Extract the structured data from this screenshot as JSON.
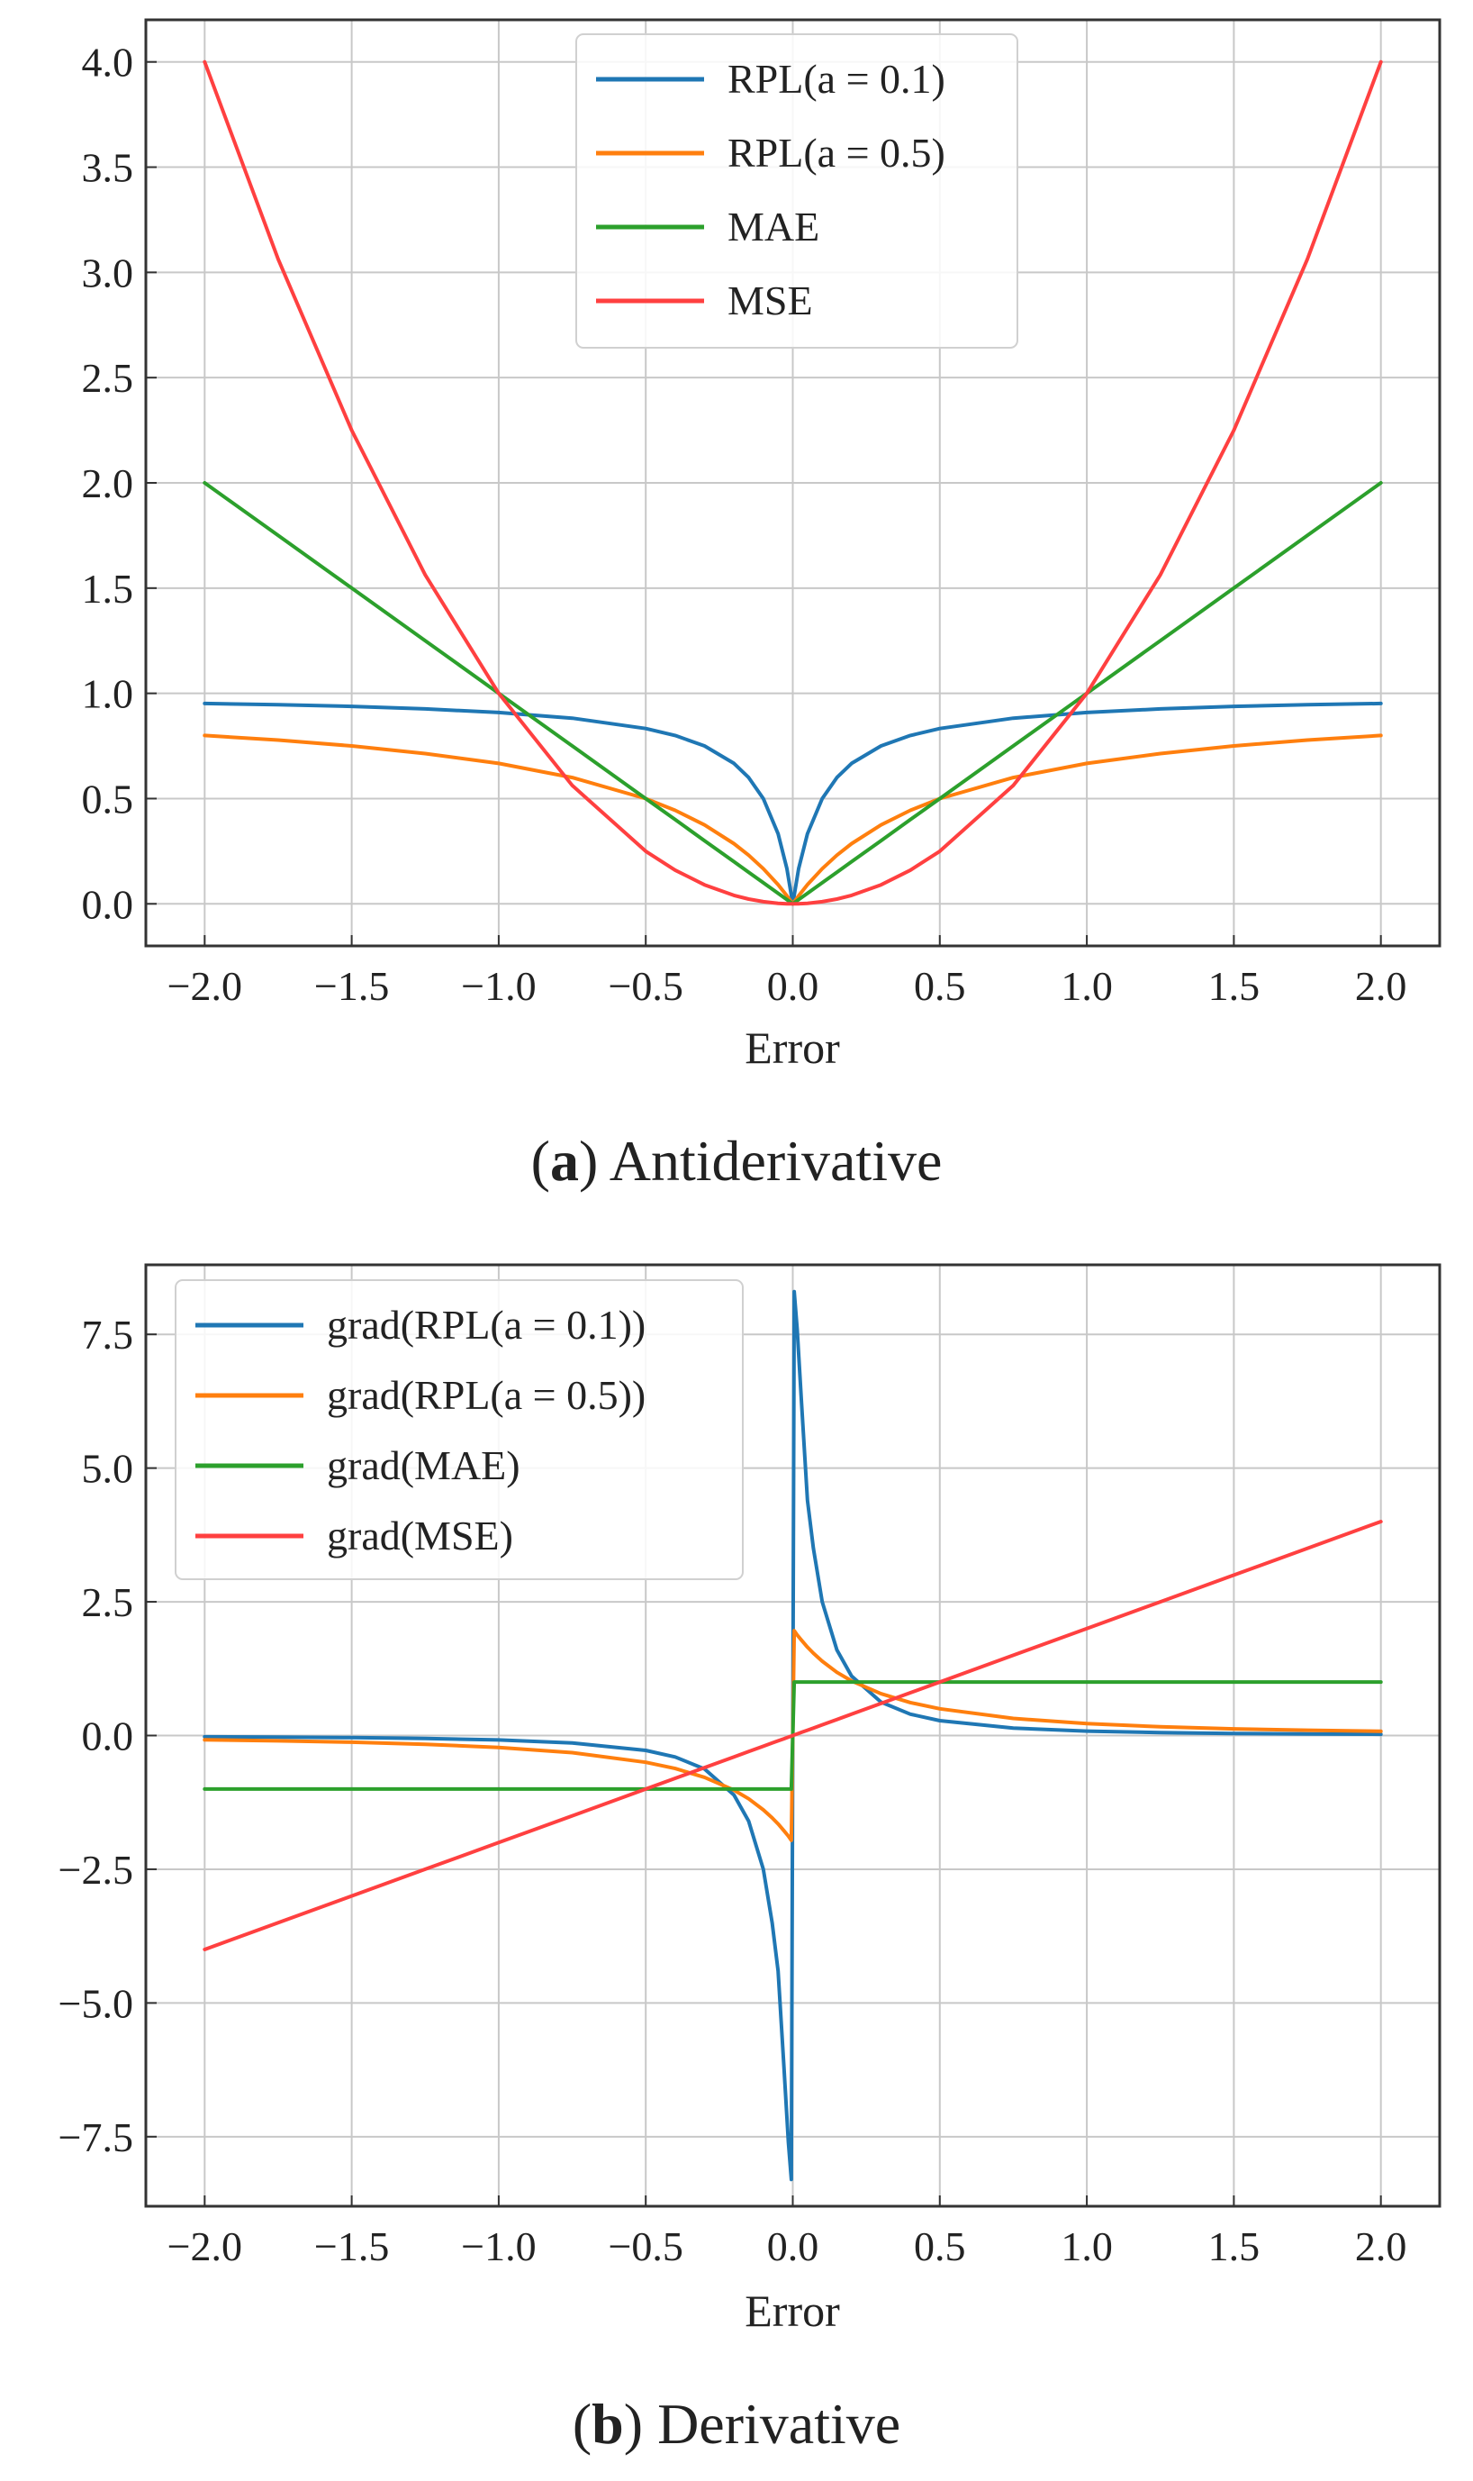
{
  "chart_data": [
    {
      "type": "line",
      "caption_letter": "a",
      "caption_text": "Antiderivative",
      "xlabel": "Error",
      "ylabel": "",
      "xlim": [
        -2.2,
        2.2
      ],
      "ylim": [
        -0.2,
        4.2
      ],
      "xticks": [
        -2.0,
        -1.5,
        -1.0,
        -0.5,
        0.0,
        0.5,
        1.0,
        1.5,
        2.0
      ],
      "xtick_labels": [
        "−2.0",
        "−1.5",
        "−1.0",
        "−0.5",
        "0.0",
        "0.5",
        "1.0",
        "1.5",
        "2.0"
      ],
      "yticks": [
        0.0,
        0.5,
        1.0,
        1.5,
        2.0,
        2.5,
        3.0,
        3.5,
        4.0
      ],
      "ytick_labels": [
        "0.0",
        "0.5",
        "1.0",
        "1.5",
        "2.0",
        "2.5",
        "3.0",
        "3.5",
        "4.0"
      ],
      "grid": true,
      "legend_position": "top-center",
      "x": [
        -2.0,
        -1.75,
        -1.5,
        -1.25,
        -1.0,
        -0.75,
        -0.5,
        -0.4,
        -0.3,
        -0.2,
        -0.15,
        -0.1,
        -0.05,
        -0.02,
        0.0,
        0.02,
        0.05,
        0.1,
        0.15,
        0.2,
        0.3,
        0.4,
        0.5,
        0.75,
        1.0,
        1.25,
        1.5,
        1.75,
        2.0
      ],
      "series": [
        {
          "name": "RPL(a = 0.1)",
          "color": "#1f77b4",
          "values": [
            0.952,
            0.946,
            0.938,
            0.926,
            0.909,
            0.882,
            0.833,
            0.8,
            0.75,
            0.667,
            0.6,
            0.5,
            0.333,
            0.167,
            0.0,
            0.167,
            0.333,
            0.5,
            0.6,
            0.667,
            0.75,
            0.8,
            0.833,
            0.882,
            0.909,
            0.926,
            0.938,
            0.946,
            0.952
          ]
        },
        {
          "name": "RPL(a = 0.5)",
          "color": "#ff7f0e",
          "values": [
            0.8,
            0.778,
            0.75,
            0.714,
            0.667,
            0.6,
            0.5,
            0.444,
            0.375,
            0.286,
            0.231,
            0.167,
            0.091,
            0.038,
            0.0,
            0.038,
            0.091,
            0.167,
            0.231,
            0.286,
            0.375,
            0.444,
            0.5,
            0.6,
            0.667,
            0.714,
            0.75,
            0.778,
            0.8
          ]
        },
        {
          "name": "MAE",
          "color": "#2ca02c",
          "values": [
            2.0,
            1.75,
            1.5,
            1.25,
            1.0,
            0.75,
            0.5,
            0.4,
            0.3,
            0.2,
            0.15,
            0.1,
            0.05,
            0.02,
            0.0,
            0.02,
            0.05,
            0.1,
            0.15,
            0.2,
            0.3,
            0.4,
            0.5,
            0.75,
            1.0,
            1.25,
            1.5,
            1.75,
            2.0
          ]
        },
        {
          "name": "MSE",
          "color": "#ff4040",
          "values": [
            4.0,
            3.0625,
            2.25,
            1.5625,
            1.0,
            0.5625,
            0.25,
            0.16,
            0.09,
            0.04,
            0.0225,
            0.01,
            0.0025,
            0.0004,
            0.0,
            0.0004,
            0.0025,
            0.01,
            0.0225,
            0.04,
            0.09,
            0.16,
            0.25,
            0.5625,
            1.0,
            1.5625,
            2.25,
            3.0625,
            4.0
          ]
        }
      ]
    },
    {
      "type": "line",
      "caption_letter": "b",
      "caption_text": "Derivative",
      "xlabel": "Error",
      "ylabel": "",
      "xlim": [
        -2.2,
        2.2
      ],
      "ylim": [
        -8.8,
        8.8
      ],
      "xticks": [
        -2.0,
        -1.5,
        -1.0,
        -0.5,
        0.0,
        0.5,
        1.0,
        1.5,
        2.0
      ],
      "xtick_labels": [
        "−2.0",
        "−1.5",
        "−1.0",
        "−0.5",
        "0.0",
        "0.5",
        "1.0",
        "1.5",
        "2.0"
      ],
      "yticks": [
        -7.5,
        -5.0,
        -2.5,
        0.0,
        2.5,
        5.0,
        7.5
      ],
      "ytick_labels": [
        "−7.5",
        "−5.0",
        "−2.5",
        "0.0",
        "2.5",
        "5.0",
        "7.5"
      ],
      "grid": true,
      "legend_position": "top-left",
      "x": [
        -2.0,
        -1.75,
        -1.5,
        -1.25,
        -1.0,
        -0.75,
        -0.5,
        -0.4,
        -0.3,
        -0.2,
        -0.15,
        -0.1,
        -0.07,
        -0.05,
        -0.03,
        -0.015,
        -0.005,
        0.005,
        0.015,
        0.03,
        0.05,
        0.07,
        0.1,
        0.15,
        0.2,
        0.3,
        0.4,
        0.5,
        0.75,
        1.0,
        1.25,
        1.5,
        1.75,
        2.0
      ],
      "series": [
        {
          "name": "grad(RPL(a = 0.1))",
          "color": "#1f77b4",
          "values": [
            -0.023,
            -0.03,
            -0.039,
            -0.055,
            -0.083,
            -0.138,
            -0.278,
            -0.4,
            -0.625,
            -1.111,
            -1.6,
            -2.5,
            -3.5,
            -4.4,
            -6.2,
            -7.6,
            -8.3,
            8.3,
            7.6,
            6.2,
            4.4,
            3.5,
            2.5,
            1.6,
            1.111,
            0.625,
            0.4,
            0.278,
            0.138,
            0.083,
            0.055,
            0.039,
            0.03,
            0.023
          ]
        },
        {
          "name": "grad(RPL(a = 0.5))",
          "color": "#ff7f0e",
          "values": [
            -0.08,
            -0.099,
            -0.125,
            -0.163,
            -0.222,
            -0.32,
            -0.5,
            -0.617,
            -0.781,
            -1.02,
            -1.183,
            -1.389,
            -1.54,
            -1.653,
            -1.78,
            -1.88,
            -1.96,
            1.96,
            1.88,
            1.78,
            1.653,
            1.54,
            1.389,
            1.183,
            1.02,
            0.781,
            0.617,
            0.5,
            0.32,
            0.222,
            0.163,
            0.125,
            0.099,
            0.08
          ]
        },
        {
          "name": "grad(MAE)",
          "color": "#2ca02c",
          "values": [
            -1.0,
            -1.0,
            -1.0,
            -1.0,
            -1.0,
            -1.0,
            -1.0,
            -1.0,
            -1.0,
            -1.0,
            -1.0,
            -1.0,
            -1.0,
            -1.0,
            -1.0,
            -1.0,
            -1.0,
            1.0,
            1.0,
            1.0,
            1.0,
            1.0,
            1.0,
            1.0,
            1.0,
            1.0,
            1.0,
            1.0,
            1.0,
            1.0,
            1.0,
            1.0,
            1.0,
            1.0
          ]
        },
        {
          "name": "grad(MSE)",
          "color": "#ff4040",
          "values": [
            -4.0,
            -3.5,
            -3.0,
            -2.5,
            -2.0,
            -1.5,
            -1.0,
            -0.8,
            -0.6,
            -0.4,
            -0.3,
            -0.2,
            -0.14,
            -0.1,
            -0.06,
            -0.03,
            -0.01,
            0.01,
            0.03,
            0.06,
            0.1,
            0.14,
            0.2,
            0.3,
            0.4,
            0.6,
            0.8,
            1.0,
            1.5,
            2.0,
            2.5,
            3.0,
            3.5,
            4.0
          ]
        }
      ]
    }
  ]
}
